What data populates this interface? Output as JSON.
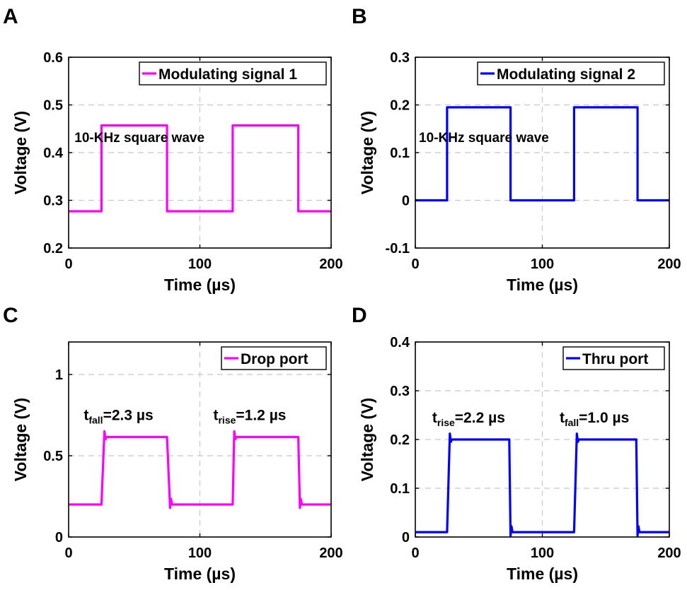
{
  "chart_data": [
    {
      "panel": "A",
      "type": "line",
      "xlabel": "Time (µs)",
      "ylabel": "Voltage (V)",
      "xlim": [
        0,
        200
      ],
      "ylim": [
        0.2,
        0.6
      ],
      "xticks": [
        0,
        100,
        200
      ],
      "yticks": [
        0.2,
        0.3,
        0.4,
        0.5,
        0.6
      ],
      "xtick_labels": [
        "0",
        "100",
        "200"
      ],
      "ytick_labels": [
        "0.2",
        "0.3",
        "0.4",
        "0.5",
        "0.6"
      ],
      "grid": true,
      "legend_position": "top-right",
      "color": "#ff00ff",
      "series": [
        {
          "name": "Modulating signal 1",
          "shape": "square",
          "x": [
            0,
            25,
            25,
            75,
            75,
            125,
            125,
            175,
            175,
            200
          ],
          "y": [
            0.277,
            0.277,
            0.457,
            0.457,
            0.277,
            0.277,
            0.457,
            0.457,
            0.277,
            0.277
          ]
        }
      ],
      "annotations": [
        {
          "text": "10-KHz square wave",
          "x": 54,
          "y": 0.422
        }
      ]
    },
    {
      "panel": "B",
      "type": "line",
      "xlabel": "Time (µs)",
      "ylabel": "Voltage (V)",
      "xlim": [
        0,
        200
      ],
      "ylim": [
        -0.1,
        0.3
      ],
      "xticks": [
        0,
        100,
        200
      ],
      "yticks": [
        -0.1,
        0,
        0.1,
        0.2,
        0.3
      ],
      "xtick_labels": [
        "0",
        "100",
        "200"
      ],
      "ytick_labels": [
        "-0.1",
        "0",
        "0.1",
        "0.2",
        "0.3"
      ],
      "grid": true,
      "legend_position": "top-right",
      "color": "#0000ff",
      "series": [
        {
          "name": "Modulating signal 2",
          "shape": "square",
          "x": [
            0,
            25,
            25,
            75,
            75,
            125,
            125,
            175,
            175,
            200
          ],
          "y": [
            0,
            0,
            0.195,
            0.195,
            0,
            0,
            0.195,
            0.195,
            0,
            0
          ]
        }
      ],
      "annotations": [
        {
          "text": "10-KHz square wave",
          "x": 54,
          "y": 0.122
        }
      ]
    },
    {
      "panel": "C",
      "type": "line",
      "xlabel": "Time (µs)",
      "ylabel": "Voltage (V)",
      "xlim": [
        0,
        200
      ],
      "ylim": [
        0,
        1.2
      ],
      "xticks": [
        0,
        100,
        200
      ],
      "yticks": [
        0,
        0.5,
        1
      ],
      "xtick_labels": [
        "0",
        "100",
        "200"
      ],
      "ytick_labels": [
        "0",
        "0.5",
        "1"
      ],
      "grid": true,
      "legend_position": "top-right",
      "color": "#ff00ff",
      "series": [
        {
          "name": "Drop port",
          "shape": "pulses",
          "low": 0.2,
          "high": 0.615,
          "edges": [
            [
              25,
              27.3
            ],
            [
              75,
              77.3
            ],
            [
              125,
              126.2
            ],
            [
              175,
              176.2
            ]
          ],
          "overshoot": 0.035
        }
      ],
      "annotations": [
        {
          "t": "t",
          "sub": "fall",
          "val": "=2.3 µs",
          "x": 38,
          "y": 0.72
        },
        {
          "t": "t",
          "sub": "rise",
          "val": "=1.2 µs",
          "x": 138,
          "y": 0.72
        }
      ]
    },
    {
      "panel": "D",
      "type": "line",
      "xlabel": "Time (µs)",
      "ylabel": "Voltage (V)",
      "xlim": [
        0,
        200
      ],
      "ylim": [
        0,
        0.4
      ],
      "xticks": [
        0,
        100,
        200
      ],
      "yticks": [
        0,
        0.1,
        0.2,
        0.3,
        0.4
      ],
      "xtick_labels": [
        "0",
        "100",
        "200"
      ],
      "ytick_labels": [
        "0",
        "0.1",
        "0.2",
        "0.3",
        "0.4"
      ],
      "grid": true,
      "legend_position": "top-right",
      "color": "#0000ff",
      "series": [
        {
          "name": "Thru port",
          "shape": "pulses",
          "low": 0.01,
          "high": 0.2,
          "edges": [
            [
              25,
              27.2
            ],
            [
              74,
              75
            ],
            [
              125,
              127.2
            ],
            [
              174,
              175
            ]
          ],
          "overshoot": 0.012
        }
      ],
      "annotations": [
        {
          "t": "t",
          "sub": "rise",
          "val": "=2.2 µs",
          "x": 42,
          "y": 0.235
        },
        {
          "t": "t",
          "sub": "fall",
          "val": "=1.0 µs",
          "x": 141,
          "y": 0.235
        }
      ]
    }
  ]
}
